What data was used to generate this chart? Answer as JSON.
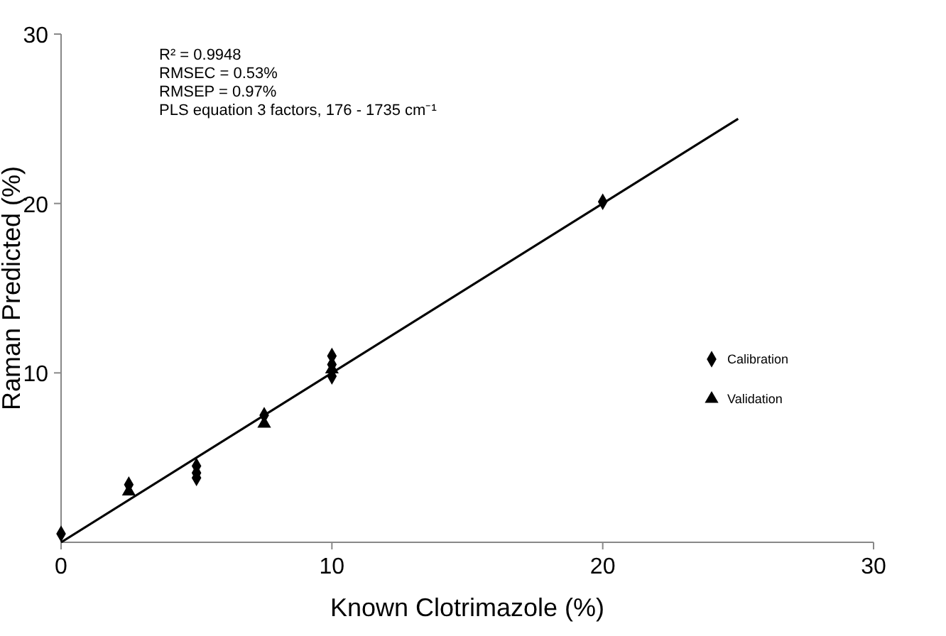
{
  "chart_data": {
    "type": "scatter",
    "xlabel": "Known Clotrimazole (%)",
    "ylabel": "Raman Predicted (%)",
    "xlim": [
      0,
      30
    ],
    "ylim": [
      0,
      30
    ],
    "xticks": [
      0,
      10,
      20,
      30
    ],
    "yticks": [
      10,
      20,
      30
    ],
    "grid": false,
    "legend": "right",
    "annotations": [
      "R² = 0.9948",
      "RMSEC = 0.53%",
      "RMSEP = 0.97%",
      "PLS equation 3 factors, 176 - 1735 cm⁻¹"
    ],
    "series": [
      {
        "name": "Calibration",
        "marker": "diamond",
        "color": "#000000",
        "x": [
          0,
          2.5,
          5,
          5,
          5,
          7.5,
          10,
          10,
          10,
          20
        ],
        "values": [
          0.5,
          3.4,
          4.5,
          4.1,
          3.8,
          7.5,
          11.0,
          10.5,
          9.8,
          20.1
        ]
      },
      {
        "name": "Validation",
        "marker": "triangle",
        "color": "#000000",
        "x": [
          2.5,
          7.5,
          10
        ],
        "values": [
          3.0,
          7.0,
          10.2
        ]
      },
      {
        "type": "line",
        "color": "#000000",
        "x": [
          0,
          25
        ],
        "values": [
          0,
          25
        ]
      }
    ]
  }
}
